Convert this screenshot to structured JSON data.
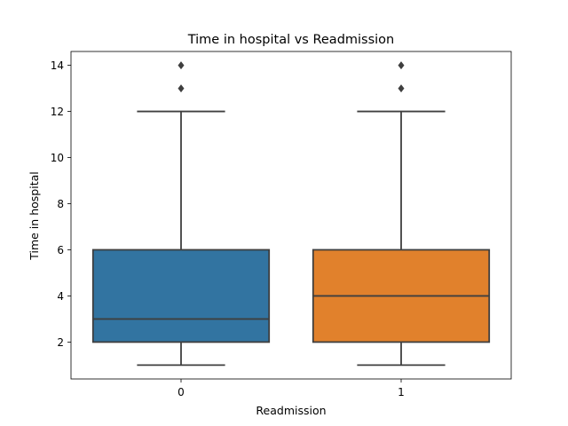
{
  "chart_data": {
    "type": "box",
    "title": "Time in hospital vs Readmission",
    "xlabel": "Readmission",
    "ylabel": "Time in hospital",
    "categories": [
      "0",
      "1"
    ],
    "ylim": [
      0.4,
      14.6
    ],
    "yticks": [
      2,
      4,
      6,
      8,
      10,
      12,
      14
    ],
    "grid": false,
    "legend": "none",
    "boxes": [
      {
        "category": "0",
        "color": "#3274a1",
        "whisker_low": 1,
        "q1": 2,
        "median": 3,
        "q3": 6,
        "whisker_high": 12,
        "outliers": [
          13,
          14
        ]
      },
      {
        "category": "1",
        "color": "#e1812c",
        "whisker_low": 1,
        "q1": 2,
        "median": 4,
        "q3": 6,
        "whisker_high": 12,
        "outliers": [
          13,
          14
        ]
      }
    ]
  }
}
